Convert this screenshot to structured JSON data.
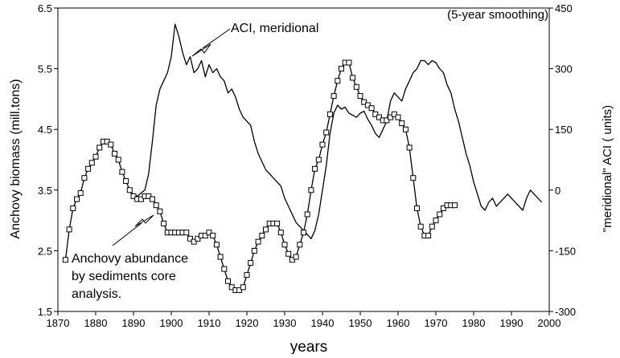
{
  "chart_data": {
    "type": "line",
    "title": "",
    "annotation_corner": "(5-year smoothing)",
    "xlabel": "years",
    "ylabel_left": "Anchovy biomass  (mill.tons)",
    "ylabel_right": "\"meridional\" ACI ( units)",
    "xlim": [
      1870,
      2000
    ],
    "ylim_left": [
      1.5,
      6.5
    ],
    "ylim_right": [
      -300,
      450
    ],
    "x_ticks": [
      "1870",
      "1880",
      "1890",
      "1900",
      "1910",
      "1920",
      "1930",
      "1940",
      "1950",
      "1960",
      "1970",
      "1980",
      "1990",
      "2000"
    ],
    "y_ticks_left": [
      "1.5",
      "2.5",
      "3.5",
      "4.5",
      "5.5",
      "6.5"
    ],
    "y_ticks_right": [
      "-300",
      "-150",
      "0",
      "150",
      "300",
      "450"
    ],
    "grid": false,
    "series": [
      {
        "name": "ACI, meridional",
        "axis": "right",
        "color": "#000000",
        "marker": "none",
        "x": [
          1889,
          1891,
          1893,
          1894,
          1895,
          1896,
          1897,
          1898,
          1899,
          1900,
          1901,
          1902,
          1903,
          1904,
          1905,
          1906,
          1907,
          1908,
          1909,
          1910,
          1911,
          1912,
          1913,
          1914,
          1915,
          1916,
          1917,
          1918,
          1919,
          1920,
          1921,
          1922,
          1923,
          1924,
          1925,
          1926,
          1927,
          1928,
          1929,
          1930,
          1931,
          1932,
          1933,
          1934,
          1935,
          1936,
          1937,
          1938,
          1939,
          1940,
          1941,
          1942,
          1943,
          1944,
          1945,
          1946,
          1947,
          1948,
          1949,
          1950,
          1951,
          1952,
          1953,
          1954,
          1955,
          1956,
          1957,
          1958,
          1959,
          1960,
          1961,
          1962,
          1963,
          1964,
          1965,
          1966,
          1967,
          1968,
          1969,
          1970,
          1971,
          1972,
          1973,
          1974,
          1975,
          1976,
          1977,
          1978,
          1979,
          1980,
          1981,
          1982,
          1983,
          1984,
          1985,
          1986,
          1987,
          1988,
          1989,
          1990,
          1991,
          1992,
          1993,
          1994,
          1995,
          1996,
          1997,
          1998
        ],
        "values": [
          -5,
          -15,
          0,
          40,
          120,
          210,
          250,
          270,
          290,
          330,
          410,
          380,
          340,
          310,
          330,
          290,
          300,
          320,
          280,
          310,
          290,
          300,
          280,
          270,
          240,
          250,
          230,
          200,
          180,
          170,
          160,
          120,
          90,
          70,
          50,
          40,
          30,
          20,
          10,
          -20,
          -40,
          -60,
          -80,
          -90,
          -100,
          -110,
          -120,
          -100,
          -60,
          0,
          60,
          140,
          190,
          210,
          200,
          205,
          190,
          185,
          180,
          190,
          195,
          175,
          160,
          140,
          130,
          150,
          170,
          220,
          240,
          230,
          220,
          250,
          270,
          290,
          300,
          320,
          320,
          310,
          320,
          315,
          300,
          290,
          260,
          240,
          200,
          170,
          130,
          90,
          60,
          20,
          -10,
          -40,
          -50,
          -30,
          -20,
          -40,
          -30,
          -20,
          -10,
          -20,
          -30,
          -40,
          -50,
          -20,
          0,
          -10,
          -20,
          -30
        ]
      },
      {
        "name": "Anchovy abundance by sediments core analysis.",
        "axis": "left",
        "color": "#000000",
        "marker": "square",
        "x": [
          1872,
          1873,
          1874,
          1875,
          1876,
          1877,
          1878,
          1879,
          1880,
          1881,
          1882,
          1883,
          1884,
          1885,
          1886,
          1887,
          1888,
          1889,
          1890,
          1891,
          1892,
          1893,
          1894,
          1895,
          1896,
          1897,
          1898,
          1899,
          1900,
          1901,
          1902,
          1903,
          1904,
          1905,
          1906,
          1907,
          1908,
          1909,
          1910,
          1911,
          1912,
          1913,
          1914,
          1915,
          1916,
          1917,
          1918,
          1919,
          1920,
          1921,
          1922,
          1923,
          1924,
          1925,
          1926,
          1927,
          1928,
          1929,
          1930,
          1931,
          1932,
          1933,
          1934,
          1935,
          1936,
          1937,
          1938,
          1939,
          1940,
          1941,
          1942,
          1943,
          1944,
          1945,
          1946,
          1947,
          1948,
          1949,
          1950,
          1951,
          1952,
          1953,
          1954,
          1955,
          1956,
          1957,
          1958,
          1959,
          1960,
          1961,
          1962,
          1963,
          1964,
          1965,
          1966,
          1967,
          1968,
          1969,
          1970,
          1971,
          1972,
          1973,
          1974,
          1975
        ],
        "values": [
          2.35,
          2.85,
          3.2,
          3.35,
          3.45,
          3.7,
          3.85,
          3.95,
          4.05,
          4.2,
          4.3,
          4.3,
          4.25,
          4.1,
          4.0,
          3.8,
          3.65,
          3.5,
          3.4,
          3.35,
          3.35,
          3.4,
          3.4,
          3.35,
          3.25,
          3.15,
          2.95,
          2.8,
          2.8,
          2.8,
          2.8,
          2.8,
          2.8,
          2.7,
          2.65,
          2.7,
          2.75,
          2.75,
          2.8,
          2.75,
          2.6,
          2.4,
          2.2,
          2.0,
          1.9,
          1.85,
          1.85,
          1.9,
          2.1,
          2.3,
          2.5,
          2.65,
          2.75,
          2.85,
          2.95,
          2.95,
          2.95,
          2.8,
          2.6,
          2.45,
          2.35,
          2.4,
          2.6,
          2.8,
          3.1,
          3.5,
          3.85,
          4.0,
          4.25,
          4.45,
          4.75,
          5.05,
          5.3,
          5.5,
          5.6,
          5.6,
          5.35,
          5.2,
          5.05,
          4.95,
          4.9,
          4.85,
          4.75,
          4.7,
          4.65,
          4.65,
          4.7,
          4.75,
          4.7,
          4.6,
          4.5,
          4.2,
          3.7,
          3.2,
          2.9,
          2.75,
          2.75,
          2.9,
          3.0,
          3.1,
          3.2,
          3.25,
          3.25,
          3.25
        ]
      }
    ],
    "annotations": [
      {
        "text": "ACI, meridional"
      },
      {
        "lines": [
          "Anchovy abundance",
          "by sediments core",
          "analysis."
        ]
      }
    ]
  }
}
